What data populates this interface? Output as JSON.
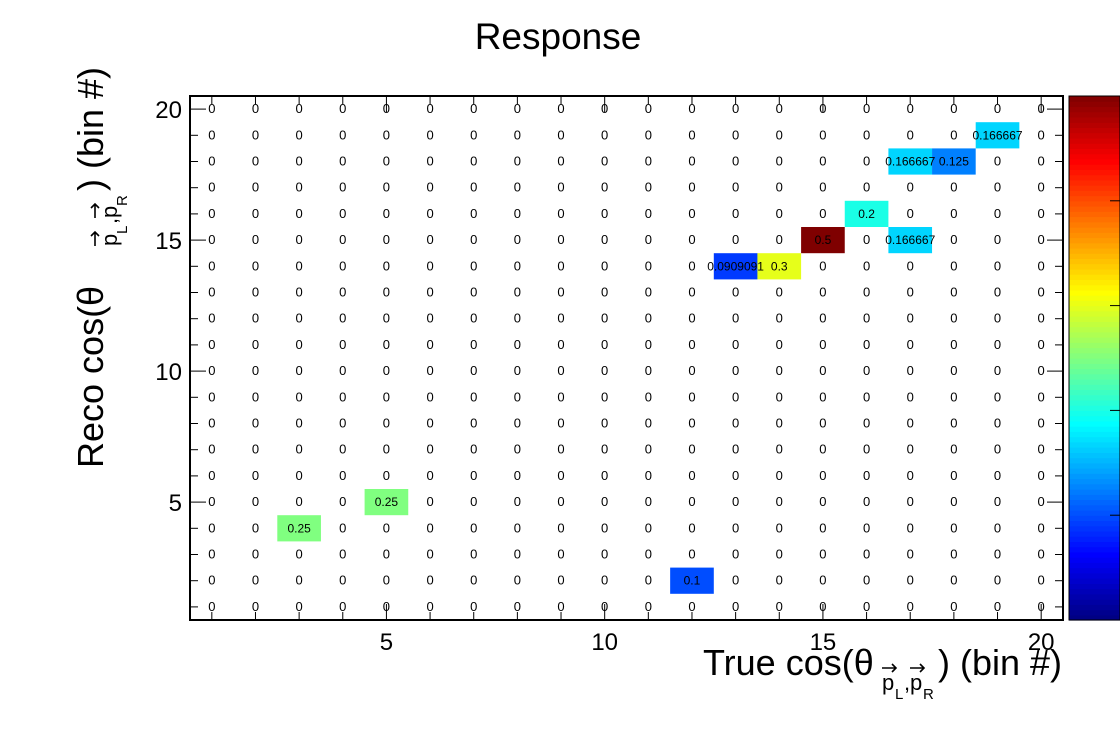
{
  "chart_data": {
    "type": "heatmap",
    "title": "Response",
    "xlabel": "True cos(θ_{p⃗_L, p⃗_R}) (bin #)",
    "ylabel": "Reco cos(θ_{p⃗_L, p⃗_R}) (bin #)",
    "x_axis_label_main": "True cos(θ",
    "x_axis_label_tail": ") (bin #)",
    "y_axis_label_main": "Reco cos(θ",
    "y_axis_label_tail": ") (bin #)",
    "subscript_left": "p",
    "subscript_left_index": "L",
    "subscript_right": "p",
    "subscript_right_index": "R",
    "n_bins_x": 20,
    "n_bins_y": 20,
    "xlim": [
      0.5,
      20.5
    ],
    "ylim": [
      0.5,
      20.5
    ],
    "x_ticks": [
      "5",
      "10",
      "15",
      "20"
    ],
    "x_tick_values": [
      5,
      10,
      15,
      20
    ],
    "y_ticks": [
      "5",
      "10",
      "15",
      "20"
    ],
    "y_tick_values": [
      5,
      10,
      15,
      20
    ],
    "zero_label": "0",
    "color_range": [
      0,
      0.5
    ],
    "colormap": [
      "#00007f",
      "#0000ff",
      "#0080ff",
      "#00ffff",
      "#80ff80",
      "#ffff00",
      "#ff8000",
      "#ff0000",
      "#7f0000"
    ],
    "nonzero_cells": [
      {
        "x": 12,
        "y": 2,
        "value": 0.1,
        "label": "0.1"
      },
      {
        "x": 3,
        "y": 4,
        "value": 0.25,
        "label": "0.25"
      },
      {
        "x": 5,
        "y": 5,
        "value": 0.25,
        "label": "0.25"
      },
      {
        "x": 13,
        "y": 14,
        "value": 0.0909091,
        "label": "0.0909091"
      },
      {
        "x": 14,
        "y": 14,
        "value": 0.3,
        "label": "0.3"
      },
      {
        "x": 15,
        "y": 15,
        "value": 0.5,
        "label": "0.5"
      },
      {
        "x": 17,
        "y": 15,
        "value": 0.166667,
        "label": "0.166667"
      },
      {
        "x": 16,
        "y": 16,
        "value": 0.2,
        "label": "0.2"
      },
      {
        "x": 17,
        "y": 18,
        "value": 0.166667,
        "label": "0.166667"
      },
      {
        "x": 18,
        "y": 18,
        "value": 0.125,
        "label": "0.125"
      },
      {
        "x": 19,
        "y": 19,
        "value": 0.166667,
        "label": "0.166667"
      }
    ]
  }
}
